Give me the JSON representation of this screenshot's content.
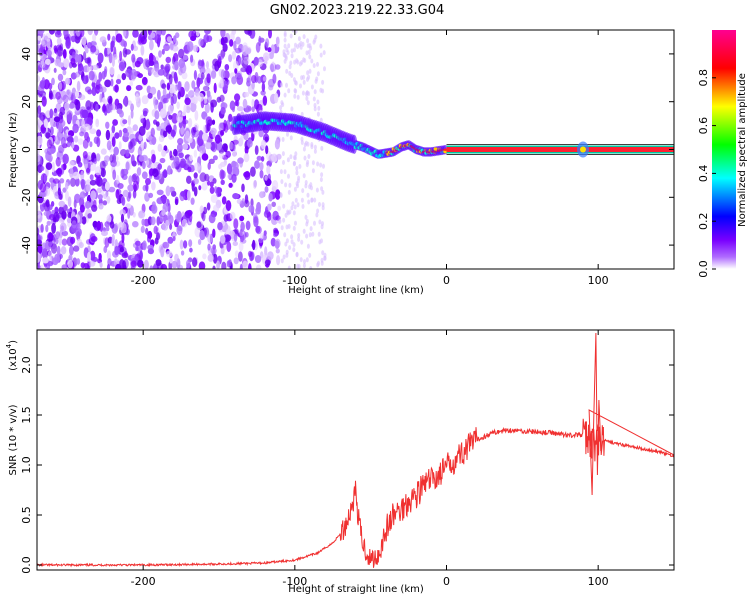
{
  "title": "GN02.2023.219.22.33.G04",
  "chart_data": [
    {
      "type": "heatmap",
      "xlabel": "Height of straight line (km)",
      "ylabel": "Frequency (Hz)",
      "xlim": [
        -270,
        150
      ],
      "ylim": [
        -50,
        50
      ],
      "xticks": [
        -200,
        -100,
        0,
        100
      ],
      "yticks": [
        -40,
        -20,
        0,
        20,
        40
      ],
      "colorbar": {
        "label": "Normalized spectral amplitude",
        "range": [
          0,
          1
        ],
        "ticks": [
          "0.0",
          "0.2",
          "0.4",
          "0.6",
          "0.8"
        ],
        "colormap": [
          "#ffffff",
          "#8a00ff",
          "#0000ff",
          "#00ffff",
          "#00ff00",
          "#ffff00",
          "#ff0000",
          "#ff00a0"
        ]
      },
      "ridge": {
        "description_points_x": [
          -140,
          -120,
          -100,
          -80,
          -65,
          -55,
          -45,
          -35,
          -30,
          -25,
          -20,
          -15,
          -10,
          0,
          50,
          88,
          92,
          100,
          150
        ],
        "frequency_y": [
          10,
          12,
          11,
          7,
          3,
          1,
          -2,
          -1,
          1,
          2,
          0,
          -1,
          -1,
          0,
          0,
          0,
          0,
          0,
          0
        ]
      }
    },
    {
      "type": "line",
      "xlabel": "Height of straight line (km)",
      "ylabel": "SNR (10 * v/v)",
      "scale_note": "(x10",
      "scale_exp": "4",
      "scale_close": ")",
      "xlim": [
        -270,
        150
      ],
      "ylim": [
        -0.05,
        2.35
      ],
      "xticks": [
        -200,
        -100,
        0,
        100
      ],
      "yticks": [
        "0.0",
        "0.5",
        "1.0",
        "1.5",
        "2.0"
      ],
      "color": "#f03030",
      "series": [
        {
          "x": [
            -270,
            -200,
            -150,
            -120,
            -100,
            -85,
            -75,
            -68,
            -63,
            -60,
            -58,
            -55,
            -50,
            -45,
            -40,
            -35,
            -30,
            -25,
            -20,
            -15,
            -10,
            -5,
            0,
            10,
            20,
            30,
            40,
            50,
            60,
            70,
            80,
            90,
            95,
            98,
            100,
            105,
            110,
            120,
            130,
            140,
            150
          ],
          "values": [
            0.0,
            0.0,
            0.01,
            0.02,
            0.05,
            0.12,
            0.22,
            0.35,
            0.55,
            0.75,
            0.45,
            0.2,
            0.05,
            0.1,
            0.35,
            0.5,
            0.55,
            0.65,
            0.7,
            0.8,
            0.85,
            0.9,
            0.98,
            1.12,
            1.25,
            1.32,
            1.35,
            1.34,
            1.33,
            1.32,
            1.3,
            1.3,
            1.25,
            1.2,
            1.25,
            1.24,
            1.22,
            1.19,
            1.16,
            1.13,
            1.09
          ]
        }
      ],
      "spikes": [
        {
          "x": 94,
          "y": 1.55
        },
        {
          "x": 96,
          "y": 0.7
        },
        {
          "x": 97,
          "y": 1.4
        },
        {
          "x": 98.5,
          "y": 2.32
        },
        {
          "x": 99.5,
          "y": 0.9
        },
        {
          "x": 100.5,
          "y": 1.65
        },
        {
          "x": 102,
          "y": 1.1
        }
      ]
    }
  ]
}
